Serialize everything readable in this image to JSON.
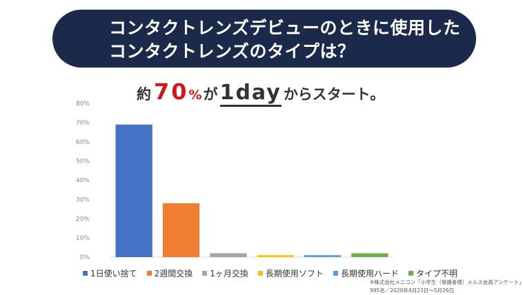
{
  "title": {
    "line1": "コンタクトレンズデビューのときに使用した",
    "line2": "コンタクトレンズのタイプは？"
  },
  "headline": {
    "prefix": "約",
    "number": "70",
    "percent": "%",
    "particle": "が",
    "emphasis": "1day",
    "suffix": "からスタート。"
  },
  "chart_data": {
    "type": "bar",
    "categories": [
      "1日使い捨て",
      "2週間交換",
      "1ヶ月交換",
      "長期使用ソフト",
      "長期使用ハード",
      "タイプ不明"
    ],
    "values": [
      69,
      28,
      2,
      1,
      1,
      2
    ],
    "colors": [
      "#4472c4",
      "#ed7d31",
      "#a5a5a5",
      "#ffc000",
      "#5b9bd5",
      "#70ad47"
    ],
    "yticks": [
      "0%",
      "10%",
      "20%",
      "30%",
      "40%",
      "50%",
      "60%",
      "70%",
      "80%"
    ],
    "ylim": [
      0,
      80
    ],
    "grid": false,
    "legend": "bottom"
  },
  "source": {
    "line1": "※株式会社メニコン「小学生（保護者様）メルス会員アンケート」",
    "line2": "995名／2020年4月23日～5月26日"
  }
}
